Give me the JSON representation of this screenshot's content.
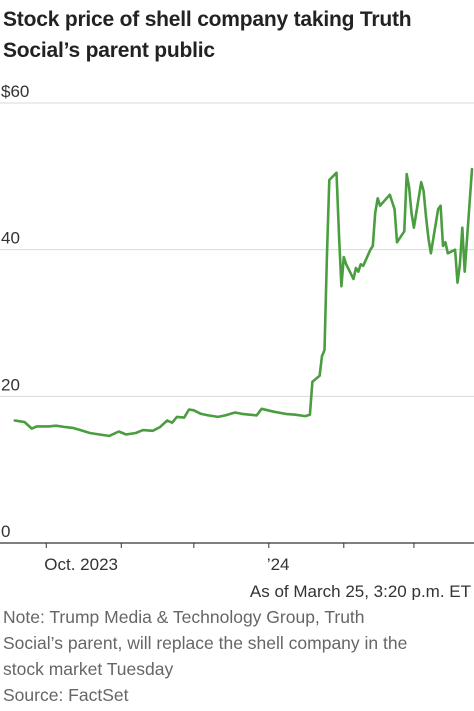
{
  "chart_data": {
    "type": "line",
    "title": "Stock price of shell company taking Truth Social’s parent public",
    "title_lines": [
      "Stock price of shell company taking Truth",
      "Social’s parent public"
    ],
    "ylim": [
      0,
      60
    ],
    "yticks": [
      {
        "value": 60,
        "label": "$60"
      },
      {
        "value": 40,
        "label": "40"
      },
      {
        "value": 20,
        "label": "20"
      },
      {
        "value": 0,
        "label": "0"
      }
    ],
    "xticks": [
      {
        "date": "2023-10-01",
        "label": "Oct. 2023"
      },
      {
        "date": "2023-11-01",
        "label": ""
      },
      {
        "date": "2023-12-01",
        "label": ""
      },
      {
        "date": "2024-01-01",
        "label": "’24"
      },
      {
        "date": "2024-02-01",
        "label": ""
      },
      {
        "date": "2024-03-01",
        "label": ""
      }
    ],
    "xrange": [
      "2023-09-16",
      "2024-03-25"
    ],
    "grid": true,
    "line_color": "#4a9e3f",
    "grid_color": "#d9d9d9",
    "series": [
      {
        "name": "",
        "points": [
          [
            "2023-09-18",
            16.7
          ],
          [
            "2023-09-20",
            16.6
          ],
          [
            "2023-09-22",
            16.5
          ],
          [
            "2023-09-25",
            15.6
          ],
          [
            "2023-09-27",
            15.9
          ],
          [
            "2023-10-02",
            15.9
          ],
          [
            "2023-10-05",
            16.0
          ],
          [
            "2023-10-09",
            15.8
          ],
          [
            "2023-10-12",
            15.7
          ],
          [
            "2023-10-16",
            15.3
          ],
          [
            "2023-10-19",
            15.0
          ],
          [
            "2023-10-23",
            14.8
          ],
          [
            "2023-10-27",
            14.6
          ],
          [
            "2023-10-31",
            15.2
          ],
          [
            "2023-11-03",
            14.8
          ],
          [
            "2023-11-07",
            15.0
          ],
          [
            "2023-11-10",
            15.4
          ],
          [
            "2023-11-14",
            15.3
          ],
          [
            "2023-11-17",
            15.8
          ],
          [
            "2023-11-20",
            16.7
          ],
          [
            "2023-11-22",
            16.4
          ],
          [
            "2023-11-24",
            17.2
          ],
          [
            "2023-11-27",
            17.1
          ],
          [
            "2023-11-29",
            18.2
          ],
          [
            "2023-12-01",
            18.1
          ],
          [
            "2023-12-04",
            17.6
          ],
          [
            "2023-12-07",
            17.4
          ],
          [
            "2023-12-11",
            17.2
          ],
          [
            "2023-12-14",
            17.4
          ],
          [
            "2023-12-18",
            17.8
          ],
          [
            "2023-12-21",
            17.6
          ],
          [
            "2023-12-27",
            17.4
          ],
          [
            "2023-12-29",
            18.3
          ],
          [
            "2024-01-03",
            17.9
          ],
          [
            "2024-01-08",
            17.6
          ],
          [
            "2024-01-12",
            17.5
          ],
          [
            "2024-01-16",
            17.3
          ],
          [
            "2024-01-18",
            17.5
          ],
          [
            "2024-01-19",
            22.0
          ],
          [
            "2024-01-22",
            22.8
          ],
          [
            "2024-01-23",
            25.5
          ],
          [
            "2024-01-24",
            26.3
          ],
          [
            "2024-01-25",
            39.0
          ],
          [
            "2024-01-26",
            49.5
          ],
          [
            "2024-01-29",
            50.5
          ],
          [
            "2024-01-30",
            42.0
          ],
          [
            "2024-01-31",
            35.0
          ],
          [
            "2024-02-01",
            39.0
          ],
          [
            "2024-02-02",
            38.0
          ],
          [
            "2024-02-05",
            36.0
          ],
          [
            "2024-02-06",
            37.5
          ],
          [
            "2024-02-07",
            37.0
          ],
          [
            "2024-02-08",
            38.0
          ],
          [
            "2024-02-09",
            37.8
          ],
          [
            "2024-02-12",
            40.0
          ],
          [
            "2024-02-13",
            40.5
          ],
          [
            "2024-02-14",
            45.0
          ],
          [
            "2024-02-15",
            47.0
          ],
          [
            "2024-02-16",
            46.0
          ],
          [
            "2024-02-20",
            47.5
          ],
          [
            "2024-02-21",
            46.5
          ],
          [
            "2024-02-22",
            45.5
          ],
          [
            "2024-02-23",
            41.0
          ],
          [
            "2024-02-26",
            42.5
          ],
          [
            "2024-02-27",
            50.3
          ],
          [
            "2024-02-28",
            48.5
          ],
          [
            "2024-02-29",
            45.0
          ],
          [
            "2024-03-01",
            43.0
          ],
          [
            "2024-03-04",
            49.2
          ],
          [
            "2024-03-05",
            48.0
          ],
          [
            "2024-03-06",
            44.5
          ],
          [
            "2024-03-07",
            41.5
          ],
          [
            "2024-03-08",
            39.5
          ],
          [
            "2024-03-11",
            45.5
          ],
          [
            "2024-03-12",
            46.0
          ],
          [
            "2024-03-13",
            40.5
          ],
          [
            "2024-03-14",
            41.0
          ],
          [
            "2024-03-15",
            39.5
          ],
          [
            "2024-03-18",
            40.0
          ],
          [
            "2024-03-19",
            35.5
          ],
          [
            "2024-03-20",
            38.0
          ],
          [
            "2024-03-21",
            43.0
          ],
          [
            "2024-03-22",
            37.0
          ],
          [
            "2024-03-25",
            51.0
          ]
        ]
      }
    ]
  },
  "annotations": {
    "as_of": "As of March 25, 3:20 p.m. ET"
  },
  "note_lines": [
    "Note: Trump Media & Technology Group, Truth",
    "Social’s parent, will replace the shell company in the",
    "stock market Tuesday"
  ],
  "source": "Source: FactSet"
}
